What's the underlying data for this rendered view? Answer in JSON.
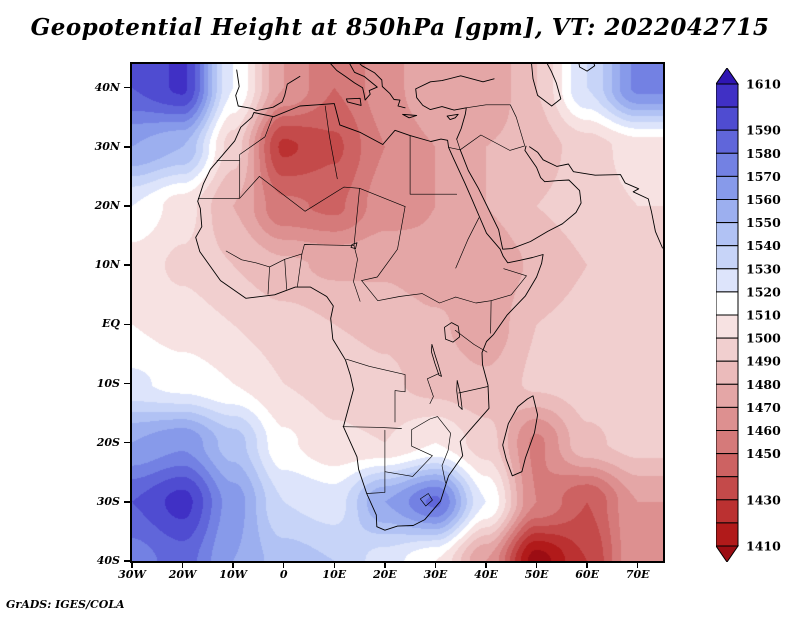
{
  "title": "Geopotential Height at 850hPa [gpm], VT: 2022042715",
  "footer": "GrADS: IGES/COLA",
  "axes": {
    "y_ticks": [
      {
        "label": "40N",
        "lat": 40
      },
      {
        "label": "30N",
        "lat": 30
      },
      {
        "label": "20N",
        "lat": 20
      },
      {
        "label": "10N",
        "lat": 10
      },
      {
        "label": "EQ",
        "lat": 0
      },
      {
        "label": "10S",
        "lat": -10
      },
      {
        "label": "20S",
        "lat": -20
      },
      {
        "label": "30S",
        "lat": -30
      },
      {
        "label": "40S",
        "lat": -40
      }
    ],
    "x_ticks": [
      {
        "label": "30W",
        "lon": -30
      },
      {
        "label": "20W",
        "lon": -20
      },
      {
        "label": "10W",
        "lon": -10
      },
      {
        "label": "0",
        "lon": 0
      },
      {
        "label": "10E",
        "lon": 10
      },
      {
        "label": "20E",
        "lon": 20
      },
      {
        "label": "30E",
        "lon": 30
      },
      {
        "label": "40E",
        "lon": 40
      },
      {
        "label": "50E",
        "lon": 50
      },
      {
        "label": "60E",
        "lon": 60
      },
      {
        "label": "70E",
        "lon": 70
      }
    ]
  },
  "colorbar": {
    "labels": [
      "1610",
      "1590",
      "1580",
      "1570",
      "1560",
      "1550",
      "1540",
      "1530",
      "1520",
      "1510",
      "1500",
      "1490",
      "1480",
      "1470",
      "1460",
      "1450",
      "1430",
      "1410"
    ],
    "label_values": [
      1610,
      1590,
      1580,
      1570,
      1560,
      1550,
      1540,
      1530,
      1520,
      1510,
      1500,
      1490,
      1480,
      1470,
      1460,
      1450,
      1430,
      1410
    ],
    "min": 1410,
    "max": 1610,
    "step": 10,
    "band_colors_top_to_bottom": [
      "#2f16b3",
      "#4030c5",
      "#4f4cd1",
      "#6066da",
      "#7381e3",
      "#879aea",
      "#9cafef",
      "#b1c2f4",
      "#c7d4f8",
      "#dde4fb",
      "#ffffff",
      "#f7e2e2",
      "#f1cfcf",
      "#ebbbbb",
      "#e4a6a6",
      "#dd9090",
      "#d57a7a",
      "#cd6262",
      "#c44a4a",
      "#bb3131",
      "#b11a1a",
      "#9c0d13"
    ]
  },
  "chart_data": {
    "type": "heatmap",
    "title": "Geopotential Height at 850hPa [gpm], VT: 2022042715",
    "units": "gpm",
    "lon_range": [
      -30,
      75
    ],
    "lat_range": [
      -40,
      44
    ],
    "levels_min": 1410,
    "levels_max": 1610,
    "levels_step": 10,
    "lats": [
      40,
      30,
      20,
      10,
      0,
      -10,
      -20,
      -30,
      -40
    ],
    "lons": [
      -30,
      -20,
      -10,
      0,
      10,
      20,
      30,
      40,
      50,
      60,
      70
    ],
    "values": [
      [
        1590,
        1602,
        1520,
        1470,
        1450,
        1465,
        1480,
        1470,
        1490,
        1530,
        1572
      ],
      [
        1560,
        1550,
        1495,
        1428,
        1438,
        1460,
        1470,
        1480,
        1485,
        1495,
        1505
      ],
      [
        1520,
        1505,
        1480,
        1452,
        1448,
        1465,
        1470,
        1480,
        1490,
        1495,
        1500
      ],
      [
        1505,
        1498,
        1490,
        1482,
        1478,
        1478,
        1472,
        1470,
        1482,
        1490,
        1498
      ],
      [
        1510,
        1505,
        1500,
        1494,
        1490,
        1488,
        1482,
        1472,
        1490,
        1494,
        1498
      ],
      [
        1522,
        1516,
        1510,
        1500,
        1496,
        1492,
        1486,
        1482,
        1492,
        1495,
        1498
      ],
      [
        1560,
        1568,
        1545,
        1512,
        1502,
        1500,
        1510,
        1495,
        1458,
        1488,
        1494
      ],
      [
        1590,
        1604,
        1565,
        1530,
        1525,
        1560,
        1582,
        1520,
        1460,
        1440,
        1470
      ],
      [
        1575,
        1585,
        1560,
        1545,
        1540,
        1525,
        1510,
        1470,
        1405,
        1430,
        1470
      ]
    ],
    "notable_features": [
      {
        "name": "Saharan heat low",
        "lon": 5,
        "lat": 27,
        "value": 1428
      },
      {
        "name": "NE Atlantic high",
        "lon": -22,
        "lat": 36,
        "value": 1602
      },
      {
        "name": "South Atlantic high",
        "lon": -20,
        "lat": -30,
        "value": 1604
      },
      {
        "name": "South Africa high",
        "lon": 27,
        "lat": -30,
        "value": 1582
      },
      {
        "name": "SW Indian Ocean low",
        "lon": 52,
        "lat": -38,
        "value": 1405
      }
    ]
  }
}
